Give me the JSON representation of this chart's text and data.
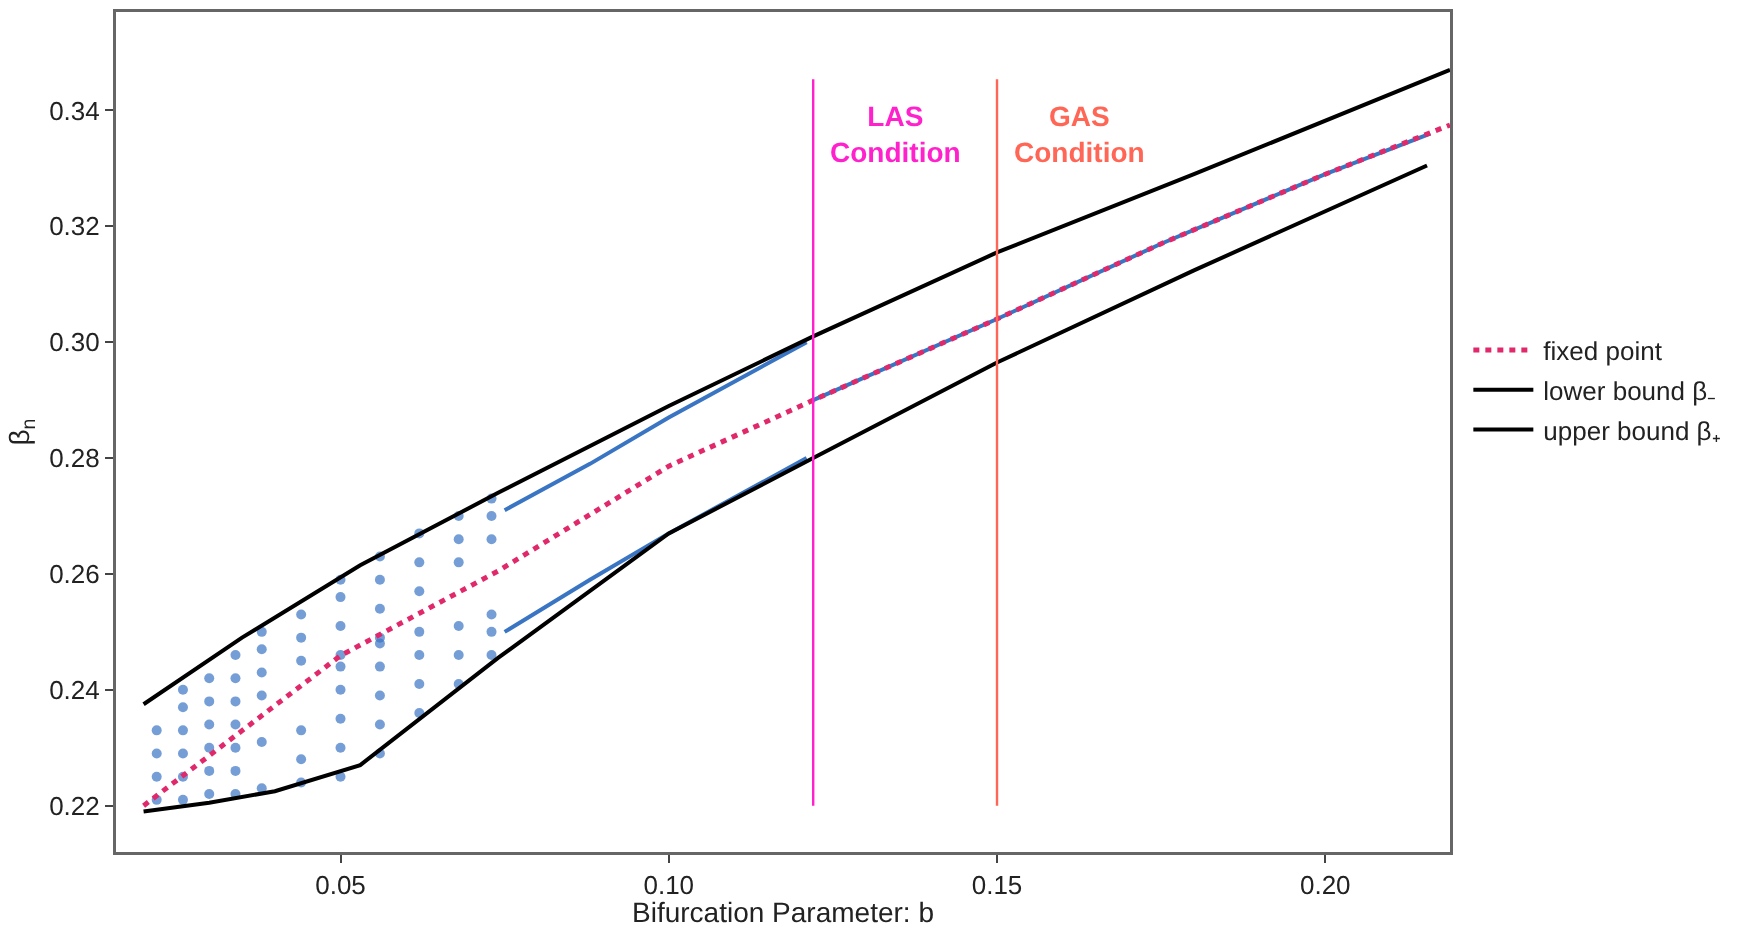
{
  "chart_data": {
    "type": "line",
    "xlabel": "Bifurcation Parameter: b",
    "ylabel": "β$_{n}$",
    "xlim": [
      0.0158,
      0.219
    ],
    "ylim": [
      0.212,
      0.357
    ],
    "xticks": [
      {
        "value": 0.05,
        "label": "0.05"
      },
      {
        "value": 0.1,
        "label": "0.10"
      },
      {
        "value": 0.15,
        "label": "0.15"
      },
      {
        "value": 0.2,
        "label": "0.20"
      }
    ],
    "yticks": [
      {
        "value": 0.22,
        "label": "0.22"
      },
      {
        "value": 0.24,
        "label": "0.24"
      },
      {
        "value": 0.26,
        "label": "0.26"
      },
      {
        "value": 0.28,
        "label": "0.28"
      },
      {
        "value": 0.3,
        "label": "0.30"
      },
      {
        "value": 0.32,
        "label": "0.32"
      },
      {
        "value": 0.34,
        "label": "0.34"
      }
    ],
    "grid": false,
    "legend": "right",
    "marker": "none",
    "series": [
      {
        "type": "scatter",
        "marker": "circle",
        "color": "#3a75c4",
        "x": [
          0.022,
          0.022,
          0.022,
          0.022,
          0.026,
          0.026,
          0.026,
          0.026,
          0.026,
          0.026,
          0.03,
          0.03,
          0.03,
          0.03,
          0.03,
          0.03,
          0.034,
          0.034,
          0.034,
          0.034,
          0.034,
          0.034,
          0.034,
          0.038,
          0.038,
          0.038,
          0.038,
          0.038,
          0.038,
          0.044,
          0.044,
          0.044,
          0.05,
          0.05,
          0.05,
          0.05,
          0.056,
          0.056,
          0.056,
          0.056,
          0.062,
          0.062,
          0.062,
          0.068,
          0.068,
          0.068,
          0.073,
          0.073,
          0.073,
          0.044,
          0.044,
          0.044,
          0.05,
          0.05,
          0.05,
          0.05,
          0.05,
          0.056,
          0.056,
          0.056,
          0.056,
          0.056,
          0.062,
          0.062,
          0.062,
          0.062,
          0.068,
          0.068,
          0.068,
          0.073,
          0.073,
          0.073
        ],
        "values": [
          0.221,
          0.225,
          0.229,
          0.233,
          0.221,
          0.225,
          0.229,
          0.233,
          0.237,
          0.24,
          0.222,
          0.226,
          0.23,
          0.234,
          0.238,
          0.242,
          0.222,
          0.226,
          0.23,
          0.234,
          0.238,
          0.242,
          0.246,
          0.223,
          0.231,
          0.239,
          0.243,
          0.247,
          0.25,
          0.245,
          0.249,
          0.253,
          0.246,
          0.251,
          0.256,
          0.259,
          0.249,
          0.254,
          0.259,
          0.263,
          0.257,
          0.262,
          0.267,
          0.262,
          0.266,
          0.27,
          0.266,
          0.27,
          0.273,
          0.224,
          0.228,
          0.233,
          0.225,
          0.23,
          0.235,
          0.24,
          0.244,
          0.229,
          0.234,
          0.239,
          0.244,
          0.248,
          0.236,
          0.241,
          0.246,
          0.25,
          0.241,
          0.246,
          0.251,
          0.246,
          0.25,
          0.253
        ]
      },
      {
        "color": "#3a75c4",
        "line_style": "solid",
        "x": [
          0.075,
          0.088,
          0.1,
          0.121
        ],
        "values": [
          0.271,
          0.279,
          0.287,
          0.3
        ]
      },
      {
        "color": "#3a75c4",
        "line_style": "solid",
        "x": [
          0.075,
          0.088,
          0.1,
          0.121
        ],
        "values": [
          0.25,
          0.259,
          0.267,
          0.28
        ]
      },
      {
        "color": "#3a75c4",
        "line_style": "solid",
        "x": [
          0.122,
          0.15,
          0.175,
          0.2,
          0.216
        ],
        "values": [
          0.29,
          0.304,
          0.317,
          0.329,
          0.336
        ]
      },
      {
        "name": "fixed point",
        "color": "#e0286a",
        "line_style": "dotted",
        "x": [
          0.02,
          0.05,
          0.074,
          0.1,
          0.122,
          0.15,
          0.175,
          0.2,
          0.219
        ],
        "values": [
          0.22,
          0.2459,
          0.2605,
          0.2786,
          0.29,
          0.304,
          0.317,
          0.329,
          0.3375
        ]
      },
      {
        "name": "lower bound β₋",
        "color": "#000000",
        "line_style": "solid",
        "x": [
          0.02,
          0.03,
          0.04,
          0.053,
          0.074,
          0.1,
          0.122,
          0.15,
          0.18,
          0.2155
        ],
        "values": [
          0.219,
          0.2205,
          0.2225,
          0.227,
          0.2455,
          0.267,
          0.28,
          0.2965,
          0.3124,
          0.3305
        ]
      },
      {
        "name": "upper bound β₊",
        "color": "#000000",
        "line_style": "solid",
        "x": [
          0.02,
          0.035,
          0.053,
          0.074,
          0.1,
          0.122,
          0.15,
          0.18,
          0.219
        ],
        "values": [
          0.2375,
          0.249,
          0.2615,
          0.274,
          0.289,
          0.301,
          0.3155,
          0.329,
          0.347
        ]
      }
    ],
    "ref_lines": [
      {
        "axis": "x",
        "value": 0.122,
        "label": "LAS\nCondition",
        "color": "#ff22cc"
      },
      {
        "axis": "x",
        "value": 0.15,
        "label": "GAS\nCondition",
        "color": "#ff6655"
      }
    ]
  }
}
